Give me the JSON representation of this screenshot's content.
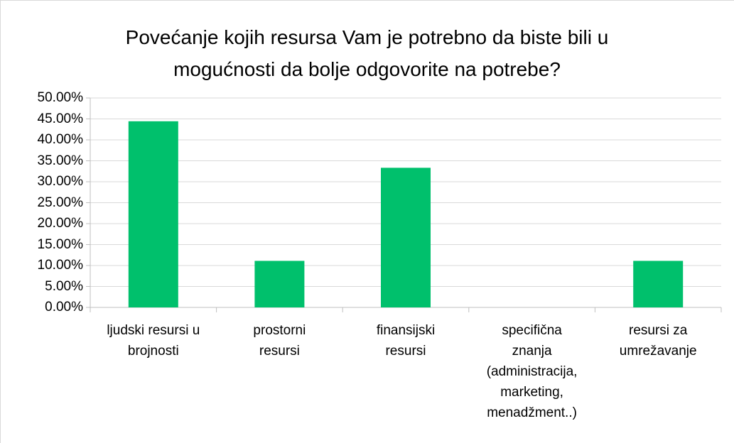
{
  "chart_data": {
    "type": "bar",
    "title": "Povećanje kojih resursa Vam je potrebno da biste bili u\nmogućnosti da bolje odgovorite na potrebe?",
    "categories": [
      "ljudski resursi u\nbrojnosti",
      "prostorni\nresursi",
      "finansijski\nresursi",
      "specifična\nznanja\n(administracija,\nmarketing,\nmenadžment..)",
      "resursi za\numrežavanje"
    ],
    "values": [
      44.44,
      11.11,
      33.33,
      0,
      11.11
    ],
    "color": "#00c06c",
    "ylim": [
      0,
      50
    ],
    "yticks": [
      {
        "value": 0,
        "label": "0.00%"
      },
      {
        "value": 5,
        "label": "5.00%"
      },
      {
        "value": 10,
        "label": "10.00%"
      },
      {
        "value": 15,
        "label": "15.00%"
      },
      {
        "value": 20,
        "label": "20.00%"
      },
      {
        "value": 25,
        "label": "25.00%"
      },
      {
        "value": 30,
        "label": "30.00%"
      },
      {
        "value": 35,
        "label": "35.00%"
      },
      {
        "value": 40,
        "label": "40.00%"
      },
      {
        "value": 45,
        "label": "45.00%"
      },
      {
        "value": 50,
        "label": "50.00%"
      }
    ],
    "grid": true
  }
}
